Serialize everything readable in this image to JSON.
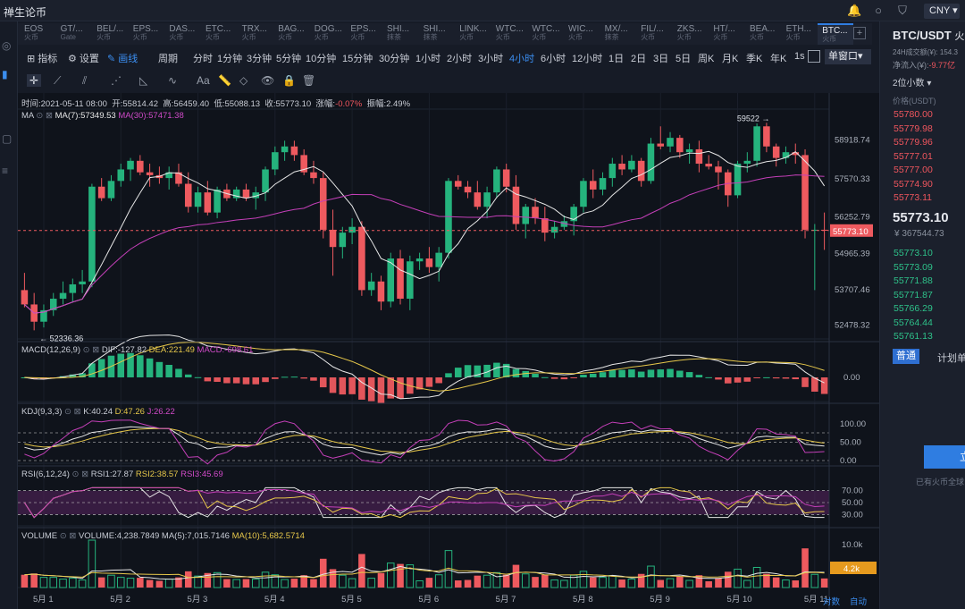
{
  "app_title": "禅生论币",
  "currency": "CNY",
  "tabs": [
    {
      "name": "EOS",
      "sub": "火币"
    },
    {
      "name": "GT/...",
      "sub": "Gate"
    },
    {
      "name": "BEL/...",
      "sub": "火币"
    },
    {
      "name": "EPS...",
      "sub": "火币"
    },
    {
      "name": "DAS...",
      "sub": "火币"
    },
    {
      "name": "ETC...",
      "sub": "火币"
    },
    {
      "name": "TRX...",
      "sub": "火币"
    },
    {
      "name": "BAG...",
      "sub": "火币"
    },
    {
      "name": "DOG...",
      "sub": "火币"
    },
    {
      "name": "EPS...",
      "sub": "火币"
    },
    {
      "name": "SHI...",
      "sub": "抹茶"
    },
    {
      "name": "SHI...",
      "sub": "抹茶"
    },
    {
      "name": "LINK...",
      "sub": "火币"
    },
    {
      "name": "WTC...",
      "sub": "火币"
    },
    {
      "name": "WTC...",
      "sub": "火币"
    },
    {
      "name": "WIC...",
      "sub": "火币"
    },
    {
      "name": "MX/...",
      "sub": "抹茶"
    },
    {
      "name": "FIL/...",
      "sub": "火币"
    },
    {
      "name": "ZKS...",
      "sub": "火币"
    },
    {
      "name": "HT/...",
      "sub": "火币"
    },
    {
      "name": "BEA...",
      "sub": "火币"
    },
    {
      "name": "ETH...",
      "sub": "火币"
    },
    {
      "name": "BTC...",
      "sub": "火币"
    }
  ],
  "toolbar": {
    "indicator": "指标",
    "settings": "设置",
    "draw": "画线",
    "period": "周期",
    "periods": [
      "分时",
      "1分钟",
      "3分钟",
      "5分钟",
      "10分钟",
      "15分钟",
      "30分钟",
      "1小时",
      "2小时",
      "3小时",
      "4小时",
      "6小时",
      "12小时",
      "1日",
      "2日",
      "3日",
      "5日",
      "周K",
      "月K",
      "季K",
      "年K",
      "1s"
    ],
    "active_period": "4小时",
    "window_mode": "单窗口"
  },
  "info": {
    "time_label": "时间:",
    "time": "2021-05-11 08:00",
    "open_label": "开:",
    "open": "55814.42",
    "high_label": "高:",
    "high": "56459.40",
    "low_label": "低:",
    "low": "55088.13",
    "close_label": "收:",
    "close": "55773.10",
    "chg_label": "涨幅:",
    "chg": "-0.07%",
    "amp_label": "振幅:",
    "amp": "2.49%"
  },
  "ma": {
    "label": "MA",
    "ma7": "MA(7):57349.53",
    "ma30": "MA(30):57471.38"
  },
  "macd": {
    "label": "MACD(12,26,9)",
    "dif": "DIF:-127.82",
    "dea": "DEA:221.49",
    "macd": "MACD:-698.61"
  },
  "kdj": {
    "label": "KDJ(9,3,3)",
    "k": "K:40.24",
    "d": "D:47.26",
    "j": "J:26.22"
  },
  "rsi": {
    "label": "RSI(6,12,24)",
    "r1": "RSI1:27.87",
    "r2": "RSI2:38.57",
    "r3": "RSI3:45.69"
  },
  "vol": {
    "label": "VOLUME",
    "v": "VOLUME:4,238.7849",
    "ma5": "MA(5):7,015.7146",
    "ma10": "MA(10):5,682.5714",
    "tag": "4.2k",
    "max": "10.0k"
  },
  "price_axis": [
    "58918.74",
    "57570.33",
    "56252.79",
    "54965.39",
    "53707.46",
    "52478.32"
  ],
  "current_price_tag": "55773.10",
  "max_label": "59522",
  "min_label": "52336.36",
  "macd_axis": [
    "0.00"
  ],
  "kdj_axis": [
    "100.00",
    "50.00",
    "0.00"
  ],
  "rsi_axis": [
    "70.00",
    "50.00",
    "30.00"
  ],
  "date_labels": [
    "5月 1",
    "5月 2",
    "5月 3",
    "5月 4",
    "5月 5",
    "5月 6",
    "5月 7",
    "5月 8",
    "5月 9",
    "5月 10",
    "5月 11"
  ],
  "bottom_buttons": [
    "对数",
    "自动"
  ],
  "side": {
    "pair": "BTC/USDT",
    "exchange": "火",
    "vol24h": "24H成交额(¥): 154.3",
    "inflow_label": "净流入(¥):",
    "inflow": "-9.77亿",
    "decimals": "2位小数",
    "price_col": "价格(USDT)",
    "asks": [
      "55780.00",
      "55779.98",
      "55779.96",
      "55777.01",
      "55777.00",
      "55774.90",
      "55773.11"
    ],
    "last": "55773.10",
    "last_cny": "¥ 367544.73",
    "bids": [
      "55773.10",
      "55773.09",
      "55771.88",
      "55771.87",
      "55766.29",
      "55764.44",
      "55761.13"
    ],
    "tab_normal": "普通",
    "tab_plan": "计划单",
    "action": "立",
    "footer": "已有火币全球"
  },
  "chart_data": {
    "type": "candlestick",
    "interval": "4小时",
    "candles": [
      [
        53700,
        54300,
        53100,
        53200
      ],
      [
        53200,
        53600,
        52300,
        52600
      ],
      [
        52600,
        53200,
        52400,
        53000
      ],
      [
        53000,
        53600,
        52800,
        53400
      ],
      [
        53400,
        54000,
        53200,
        53600
      ],
      [
        53600,
        54100,
        53300,
        53900
      ],
      [
        53900,
        54400,
        53600,
        54000
      ],
      [
        54000,
        57400,
        53800,
        57300
      ],
      [
        57300,
        57600,
        56800,
        56900
      ],
      [
        56900,
        57700,
        56800,
        57500
      ],
      [
        57500,
        58100,
        57300,
        57900
      ],
      [
        57900,
        58300,
        57500,
        58200
      ],
      [
        58200,
        58400,
        57700,
        57800
      ],
      [
        57800,
        58100,
        57300,
        57700
      ],
      [
        57700,
        58000,
        57400,
        57600
      ],
      [
        57600,
        58000,
        57200,
        57800
      ],
      [
        57800,
        58100,
        57300,
        57400
      ],
      [
        57400,
        57800,
        56400,
        56600
      ],
      [
        56600,
        57300,
        56400,
        57100
      ],
      [
        57100,
        57500,
        56300,
        56400
      ],
      [
        56400,
        57300,
        56200,
        57200
      ],
      [
        57200,
        57400,
        56800,
        56900
      ],
      [
        56900,
        57300,
        56800,
        57200
      ],
      [
        57200,
        57400,
        56800,
        56900
      ],
      [
        56900,
        57300,
        56500,
        57100
      ],
      [
        57100,
        58000,
        56800,
        57900
      ],
      [
        57900,
        58700,
        57700,
        58500
      ],
      [
        58500,
        58900,
        58200,
        58700
      ],
      [
        58700,
        58900,
        58200,
        58400
      ],
      [
        58400,
        58600,
        57700,
        57800
      ],
      [
        57800,
        58200,
        57400,
        57600
      ],
      [
        57600,
        57800,
        55500,
        55800
      ],
      [
        55800,
        56500,
        54200,
        55200
      ],
      [
        55200,
        55900,
        54800,
        55700
      ],
      [
        55700,
        56200,
        55300,
        55900
      ],
      [
        55900,
        56100,
        53500,
        53700
      ],
      [
        53700,
        54300,
        53500,
        54000
      ],
      [
        54000,
        54200,
        53000,
        53300
      ],
      [
        53300,
        55000,
        53100,
        54800
      ],
      [
        54800,
        55100,
        53200,
        53400
      ],
      [
        53400,
        54900,
        53000,
        54700
      ],
      [
        54700,
        55000,
        54400,
        54800
      ],
      [
        54800,
        55200,
        54300,
        54500
      ],
      [
        54500,
        55200,
        54000,
        55000
      ],
      [
        55000,
        57600,
        54800,
        57500
      ],
      [
        57500,
        57700,
        57200,
        57300
      ],
      [
        57300,
        57500,
        56900,
        57100
      ],
      [
        57100,
        57500,
        56500,
        56600
      ],
      [
        56600,
        57300,
        56200,
        57100
      ],
      [
        57100,
        58000,
        56900,
        57900
      ],
      [
        57900,
        58100,
        57100,
        57300
      ],
      [
        57300,
        57700,
        55800,
        56000
      ],
      [
        56000,
        56700,
        55500,
        56600
      ],
      [
        56600,
        56900,
        56000,
        56200
      ],
      [
        56200,
        56600,
        55400,
        55700
      ],
      [
        55700,
        56100,
        55500,
        55900
      ],
      [
        55900,
        56300,
        55800,
        56100
      ],
      [
        56100,
        56700,
        55600,
        56600
      ],
      [
        56600,
        57600,
        56400,
        57500
      ],
      [
        57500,
        57900,
        56900,
        57200
      ],
      [
        57200,
        57800,
        57000,
        57600
      ],
      [
        57600,
        58300,
        57300,
        58100
      ],
      [
        58100,
        58400,
        57700,
        57900
      ],
      [
        57900,
        58400,
        57800,
        58200
      ],
      [
        58200,
        58300,
        57300,
        57500
      ],
      [
        57500,
        59000,
        57400,
        58800
      ],
      [
        58800,
        59400,
        58600,
        58700
      ],
      [
        58700,
        59200,
        58500,
        59000
      ],
      [
        59000,
        59100,
        58300,
        58500
      ],
      [
        58500,
        58800,
        58100,
        58600
      ],
      [
        58600,
        58900,
        57800,
        58100
      ],
      [
        58100,
        58400,
        57900,
        58000
      ],
      [
        58000,
        58200,
        57200,
        57800
      ],
      [
        57800,
        57900,
        56600,
        57000
      ],
      [
        57000,
        58200,
        56900,
        58100
      ],
      [
        58100,
        58500,
        57800,
        58200
      ],
      [
        58200,
        59500,
        58000,
        59400
      ],
      [
        59400,
        59522,
        58500,
        58700
      ],
      [
        58700,
        58800,
        58000,
        58300
      ],
      [
        58300,
        58700,
        58100,
        58500
      ],
      [
        58500,
        58800,
        58100,
        58400
      ],
      [
        58400,
        58600,
        55500,
        55800
      ],
      [
        55800,
        56000,
        53700,
        55800
      ],
      [
        55800,
        56400,
        55100,
        55773
      ]
    ],
    "price_range": [
      52000,
      60000
    ],
    "date_ticks": [
      "5月 1",
      "5月 2",
      "5月 3",
      "5月 4",
      "5月 5",
      "5月 6",
      "5月 7",
      "5月 8",
      "5月 9",
      "5月 10",
      "5月 11"
    ]
  }
}
